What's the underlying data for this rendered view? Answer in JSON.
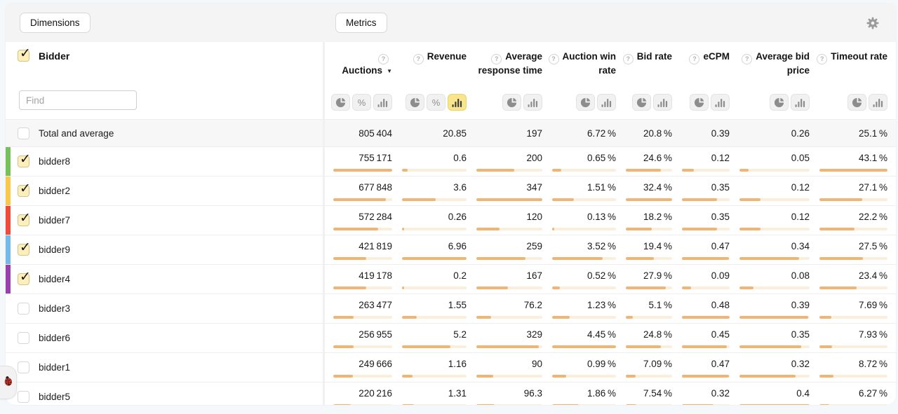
{
  "toolbar": {
    "dimensions_label": "Dimensions",
    "metrics_label": "Metrics"
  },
  "icons": {
    "settings": "gear-icon",
    "debug": "ladybug-icon",
    "metric_help": "question-icon",
    "toggle_pie": "pie-chart-icon",
    "toggle_percent": "percent-icon",
    "toggle_bars": "bar-chart-icon",
    "sort_desc": "sort-desc-icon"
  },
  "colors": {
    "bar_fill": "#f0b572",
    "bar_track": "#fbeedb",
    "toggle_active_bg": "#f8e58e",
    "checkbox_checked_bg": "#fcefb9"
  },
  "dimensions": {
    "title": "Bidder",
    "title_checked": true,
    "find_placeholder": "Find"
  },
  "metrics": [
    {
      "label": "Auctions",
      "sort_indicator": "▼",
      "toggles": [
        "pie",
        "percent",
        "bars"
      ],
      "active_toggle": null
    },
    {
      "label": "Revenue",
      "sort_indicator": null,
      "toggles": [
        "pie",
        "percent",
        "bars"
      ],
      "active_toggle": "bars"
    },
    {
      "label": "Average response time",
      "sort_indicator": null,
      "toggles": [
        "pie",
        "bars"
      ],
      "active_toggle": null
    },
    {
      "label": "Auction win rate",
      "sort_indicator": null,
      "toggles": [
        "pie",
        "bars"
      ],
      "active_toggle": null
    },
    {
      "label": "Bid rate",
      "sort_indicator": null,
      "toggles": [
        "pie",
        "bars"
      ],
      "active_toggle": null
    },
    {
      "label": "eCPM",
      "sort_indicator": null,
      "toggles": [
        "pie",
        "bars"
      ],
      "active_toggle": null
    },
    {
      "label": "Average bid price",
      "sort_indicator": null,
      "toggles": [
        "pie",
        "bars"
      ],
      "active_toggle": null
    },
    {
      "label": "Timeout rate",
      "sort_indicator": null,
      "toggles": [
        "pie",
        "bars"
      ],
      "active_toggle": null
    }
  ],
  "chart_data": {
    "type": "table",
    "columns": [
      "Bidder",
      "Auctions",
      "Revenue",
      "Average response time",
      "Auction win rate",
      "Bid rate",
      "eCPM",
      "Average bid price",
      "Timeout rate"
    ],
    "rows": [
      {
        "label": "Total and average",
        "total": true,
        "checked": false,
        "stripe": null,
        "values": [
          "805 404",
          "20.85",
          "197",
          "6.72 %",
          "20.8 %",
          "0.39",
          "0.26",
          "25.1 %"
        ]
      },
      {
        "label": "bidder8",
        "total": false,
        "checked": true,
        "stripe": "#76c15c",
        "values": [
          "755 171",
          "0.6",
          "200",
          "0.65 %",
          "24.6 %",
          "0.12",
          "0.05",
          "43.1 %"
        ]
      },
      {
        "label": "bidder2",
        "total": false,
        "checked": true,
        "stripe": "#f8c94d",
        "values": [
          "677 848",
          "3.6",
          "347",
          "1.51 %",
          "32.4 %",
          "0.35",
          "0.12",
          "27.1 %"
        ]
      },
      {
        "label": "bidder7",
        "total": false,
        "checked": true,
        "stripe": "#ef4a3a",
        "values": [
          "572 284",
          "0.26",
          "120",
          "0.13 %",
          "18.2 %",
          "0.35",
          "0.12",
          "22.2 %"
        ]
      },
      {
        "label": "bidder9",
        "total": false,
        "checked": true,
        "stripe": "#74b9ea",
        "values": [
          "421 819",
          "6.96",
          "259",
          "3.52 %",
          "19.4 %",
          "0.47",
          "0.34",
          "27.5 %"
        ]
      },
      {
        "label": "bidder4",
        "total": false,
        "checked": true,
        "stripe": "#9b3fae",
        "values": [
          "419 178",
          "0.2",
          "167",
          "0.52 %",
          "27.9 %",
          "0.09",
          "0.08",
          "23.4 %"
        ]
      },
      {
        "label": "bidder3",
        "total": false,
        "checked": false,
        "stripe": null,
        "values": [
          "263 477",
          "1.55",
          "76.2",
          "1.23 %",
          "5.1 %",
          "0.48",
          "0.39",
          "7.69 %"
        ]
      },
      {
        "label": "bidder6",
        "total": false,
        "checked": false,
        "stripe": null,
        "values": [
          "256 955",
          "5.2",
          "329",
          "4.45 %",
          "24.8 %",
          "0.45",
          "0.35",
          "7.93 %"
        ]
      },
      {
        "label": "bidder1",
        "total": false,
        "checked": false,
        "stripe": null,
        "values": [
          "249 666",
          "1.16",
          "90",
          "0.99 %",
          "7.09 %",
          "0.47",
          "0.32",
          "8.72 %"
        ]
      },
      {
        "label": "bidder5",
        "total": false,
        "checked": false,
        "stripe": null,
        "values": [
          "220 216",
          "1.31",
          "96.3",
          "1.86 %",
          "7.54 %",
          "0.32",
          "0.4",
          "6.27 %"
        ]
      }
    ]
  }
}
